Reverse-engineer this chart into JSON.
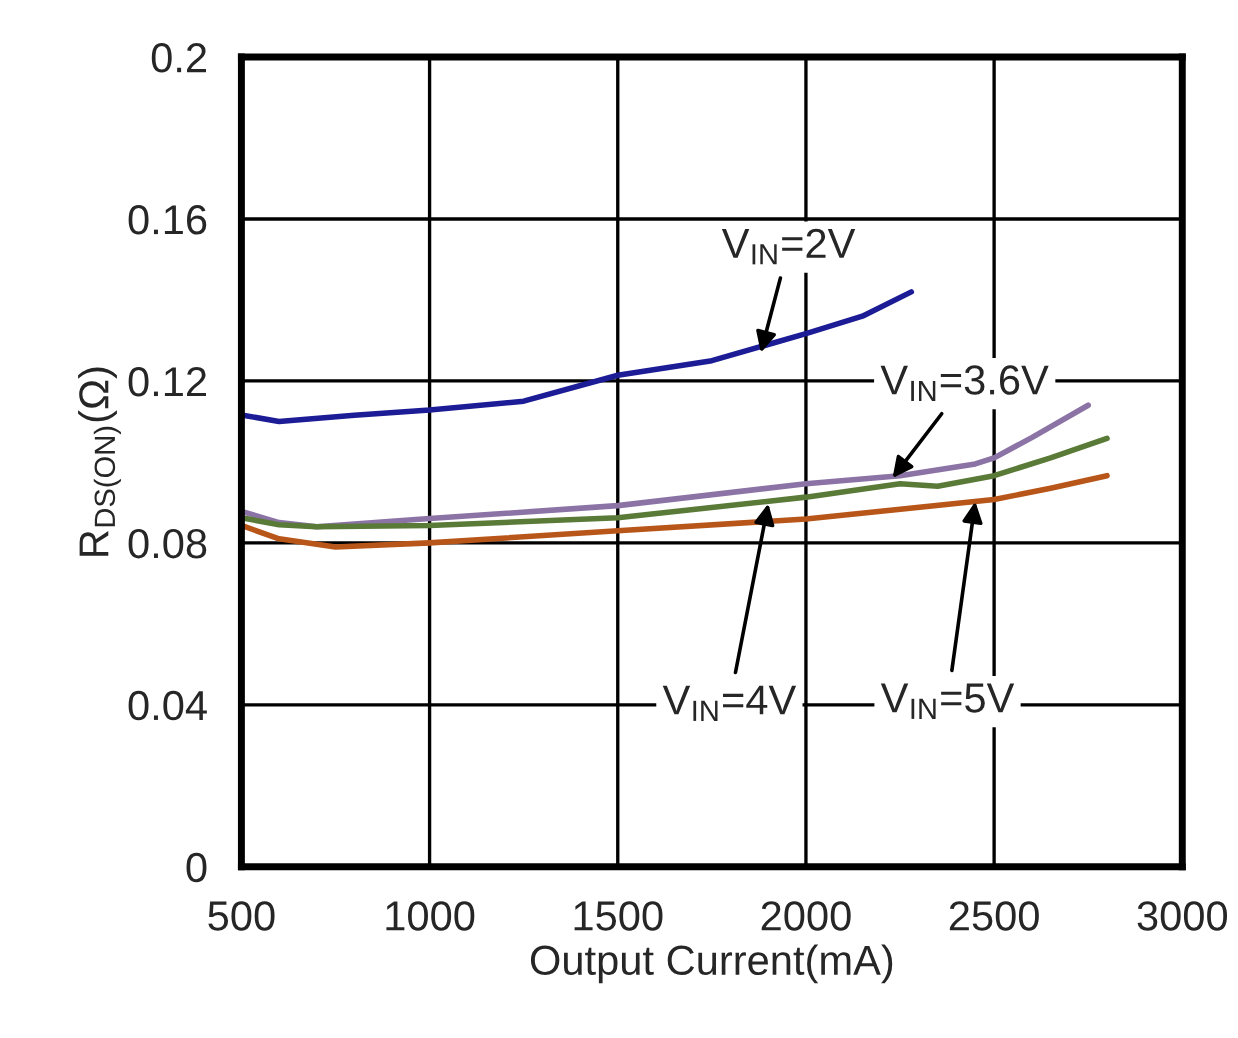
{
  "chart_data": {
    "type": "line",
    "xlabel": "Output Current(mA)",
    "ylabel": "R$_{DS(ON)}$(Ω)",
    "xlim": [
      500,
      3000
    ],
    "xticks": [
      500,
      1000,
      1500,
      2000,
      2500,
      3000
    ],
    "ylim": [
      0,
      0.2
    ],
    "yticks": [
      0,
      0.04,
      0.08,
      0.12,
      0.16,
      0.2
    ],
    "grid": true,
    "legend": false,
    "marker": "none",
    "line_style": "solid",
    "series": [
      {
        "color": "#1c1c96",
        "x": [
          500,
          600,
          800,
          1000,
          1250,
          1500,
          1750,
          2000,
          2150,
          2280
        ],
        "values": [
          0.1116,
          0.11,
          0.1115,
          0.1128,
          0.115,
          0.1214,
          0.125,
          0.1317,
          0.136,
          0.142
        ]
      },
      {
        "color": "#8c73a6",
        "x": [
          500,
          600,
          700,
          1000,
          1500,
          2000,
          2250,
          2450,
          2500,
          2600,
          2750
        ],
        "values": [
          0.0878,
          0.085,
          0.084,
          0.086,
          0.0892,
          0.0946,
          0.0966,
          0.0995,
          0.101,
          0.106,
          0.114
        ]
      },
      {
        "color": "#5a7a38",
        "x": [
          500,
          600,
          700,
          1000,
          1500,
          2000,
          2250,
          2350,
          2500,
          2650,
          2800
        ],
        "values": [
          0.0862,
          0.0845,
          0.084,
          0.0843,
          0.0862,
          0.0913,
          0.0946,
          0.094,
          0.0966,
          0.101,
          0.1058
        ]
      },
      {
        "color": "#b8561a",
        "x": [
          500,
          600,
          750,
          1000,
          1500,
          2000,
          2500,
          2650,
          2800
        ],
        "values": [
          0.0843,
          0.081,
          0.079,
          0.08,
          0.083,
          0.0859,
          0.0907,
          0.0935,
          0.0966
        ]
      }
    ],
    "annotations": [
      {
        "text": "V$_{IN}$=2V",
        "x": 1880,
        "y": 0.127
      },
      {
        "text": "V$_{IN}$=3.6V",
        "x": 2230,
        "y": 0.096
      },
      {
        "text": "V$_{IN}$=4V",
        "x": 1900,
        "y": 0.0897
      },
      {
        "text": "V$_{IN}$=5V",
        "x": 2450,
        "y": 0.0902
      }
    ]
  }
}
